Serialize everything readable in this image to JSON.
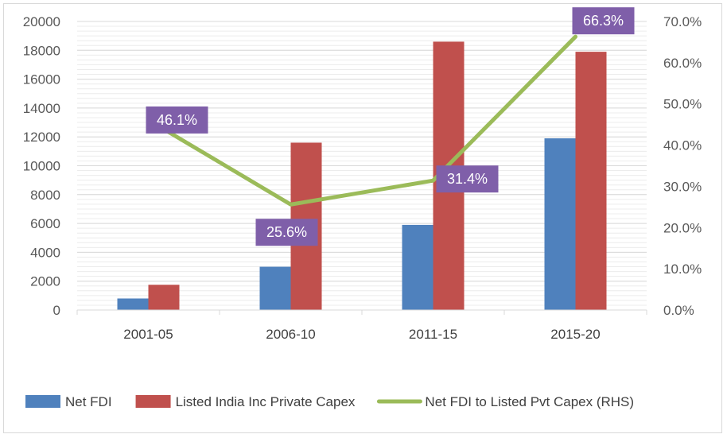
{
  "chart_data": {
    "type": "bar",
    "title": "",
    "categories": [
      "2001-05",
      "2006-10",
      "2011-15",
      "2015-20"
    ],
    "series": [
      {
        "name": "Net FDI",
        "kind": "bar",
        "axis": "left",
        "color": "#4f81bd",
        "values": [
          800,
          3000,
          5900,
          11900
        ]
      },
      {
        "name": "Listed India Inc Private Capex",
        "kind": "bar",
        "axis": "left",
        "color": "#c0504d",
        "values": [
          1750,
          11600,
          18600,
          17900
        ]
      },
      {
        "name": "Net FDI to Listed Pvt Capex (RHS)",
        "kind": "line",
        "axis": "right",
        "color": "#9bbb59",
        "values": [
          46.1,
          25.6,
          31.4,
          66.3
        ],
        "labels": [
          "46.1%",
          "25.6%",
          "31.4%",
          "66.3%"
        ]
      }
    ],
    "ylim": [
      0,
      20000
    ],
    "yticks": [
      "0",
      "2000",
      "4000",
      "6000",
      "8000",
      "10000",
      "12000",
      "14000",
      "16000",
      "18000",
      "20000"
    ],
    "y2lim": [
      0,
      70
    ],
    "y2ticks": [
      "0.0%",
      "10.0%",
      "20.0%",
      "30.0%",
      "40.0%",
      "50.0%",
      "60.0%",
      "70.0%"
    ],
    "label_color": "#7f5fa9",
    "grid": true,
    "legend": "bottom"
  }
}
